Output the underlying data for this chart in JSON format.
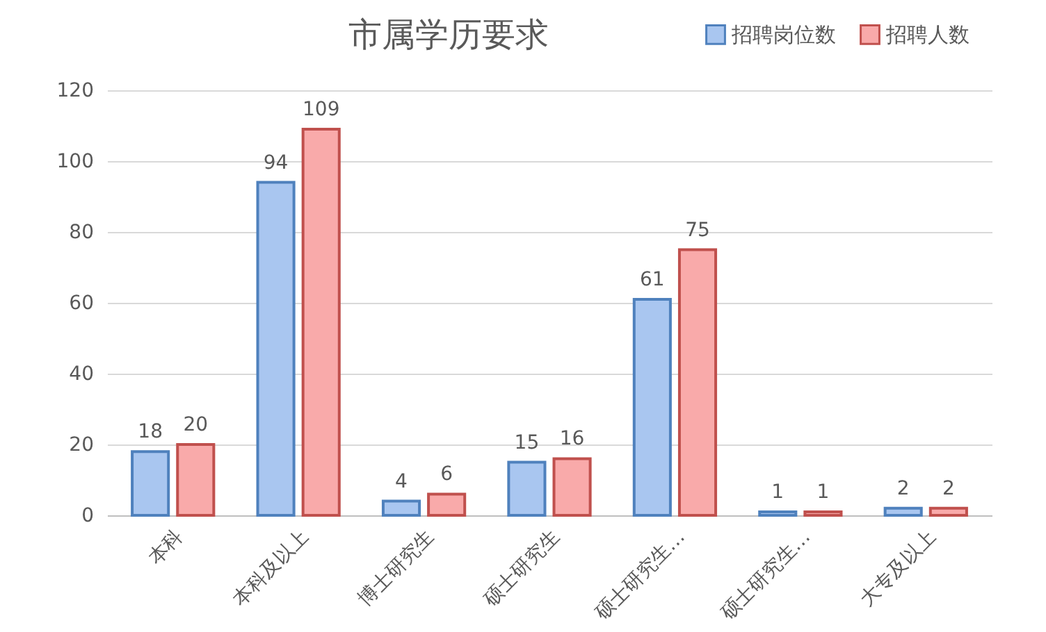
{
  "chart_data": {
    "type": "bar",
    "title": "市属学历要求",
    "categories": [
      "本科",
      "本科及以上",
      "博士研究生",
      "硕士研究生",
      "硕士研究生…",
      "硕士研究生…",
      "大专及以上"
    ],
    "series": [
      {
        "name": "招聘岗位数",
        "color": "#a9c6f0",
        "values": [
          18,
          94,
          4,
          15,
          61,
          1,
          2
        ]
      },
      {
        "name": "招聘人数",
        "color": "#f9aaaa",
        "values": [
          20,
          109,
          6,
          16,
          75,
          1,
          2
        ]
      }
    ],
    "ylim": [
      0,
      120
    ],
    "yticks": [
      0,
      20,
      40,
      60,
      80,
      100,
      120
    ],
    "grid": "y",
    "legend": "top right",
    "data_labels": true
  }
}
